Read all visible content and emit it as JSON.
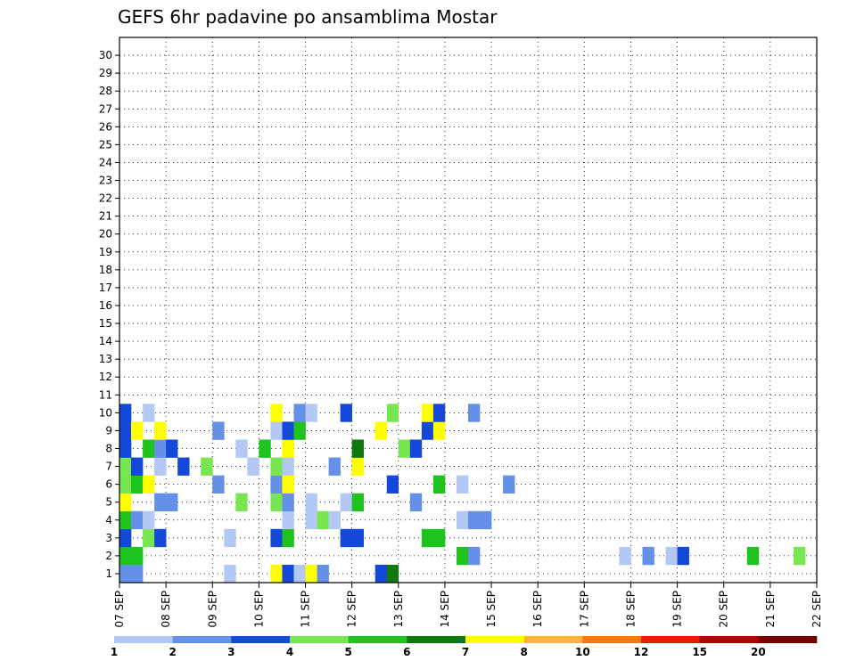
{
  "chart_data": {
    "type": "heatmap",
    "title": "GEFS 6hr padavine po ansamblima Mostar",
    "xlabel": "",
    "ylabel": "",
    "x_ticks": [
      "07 SEP",
      "08 SEP",
      "09 SEP",
      "10 SEP",
      "11 SEP",
      "12 SEP",
      "13 SEP",
      "14 SEP",
      "15 SEP",
      "16 SEP",
      "17 SEP",
      "18 SEP",
      "19 SEP",
      "20 SEP",
      "21 SEP",
      "22 SEP"
    ],
    "x_step_hours": 6,
    "y_ticks": [
      1,
      2,
      3,
      4,
      5,
      6,
      7,
      8,
      9,
      10,
      11,
      12,
      13,
      14,
      15,
      16,
      17,
      18,
      19,
      20,
      21,
      22,
      23,
      24,
      25,
      26,
      27,
      28,
      29,
      30
    ],
    "grid": true,
    "colorbar": {
      "labels": [
        "1",
        "2",
        "3",
        "4",
        "5",
        "6",
        "7",
        "8",
        "10",
        "12",
        "15",
        "20"
      ],
      "colors": [
        "#b4c8f5",
        "#6490e8",
        "#1448d8",
        "#78e650",
        "#1ec31e",
        "#0f780f",
        "#ffff00",
        "#ffb432",
        "#ff7800",
        "#e61e00",
        "#b40000",
        "#780000"
      ]
    },
    "cells": [
      [
        1,
        1,
        1
      ],
      [
        2,
        1,
        1
      ],
      [
        10,
        1,
        0
      ],
      [
        14,
        1,
        6
      ],
      [
        15,
        1,
        2
      ],
      [
        16,
        1,
        0
      ],
      [
        17,
        1,
        6
      ],
      [
        18,
        1,
        1
      ],
      [
        23,
        1,
        2
      ],
      [
        24,
        1,
        5
      ],
      [
        1,
        2,
        4
      ],
      [
        2,
        2,
        4
      ],
      [
        30,
        2,
        4
      ],
      [
        31,
        2,
        1
      ],
      [
        44,
        2,
        0
      ],
      [
        46,
        2,
        1
      ],
      [
        48,
        2,
        0
      ],
      [
        49,
        2,
        2
      ],
      [
        55,
        2,
        4
      ],
      [
        59,
        2,
        3
      ],
      [
        1,
        3,
        2
      ],
      [
        3,
        3,
        3
      ],
      [
        4,
        3,
        2
      ],
      [
        10,
        3,
        0
      ],
      [
        14,
        3,
        2
      ],
      [
        15,
        3,
        4
      ],
      [
        20,
        3,
        2
      ],
      [
        21,
        3,
        2
      ],
      [
        27,
        3,
        4
      ],
      [
        28,
        3,
        4
      ],
      [
        1,
        4,
        4
      ],
      [
        2,
        4,
        1
      ],
      [
        3,
        4,
        0
      ],
      [
        15,
        4,
        0
      ],
      [
        17,
        4,
        0
      ],
      [
        18,
        4,
        3
      ],
      [
        19,
        4,
        0
      ],
      [
        30,
        4,
        0
      ],
      [
        31,
        4,
        1
      ],
      [
        32,
        4,
        1
      ],
      [
        1,
        5,
        6
      ],
      [
        4,
        5,
        1
      ],
      [
        5,
        5,
        1
      ],
      [
        11,
        5,
        3
      ],
      [
        14,
        5,
        3
      ],
      [
        15,
        5,
        1
      ],
      [
        17,
        5,
        0
      ],
      [
        20,
        5,
        0
      ],
      [
        21,
        5,
        4
      ],
      [
        26,
        5,
        1
      ],
      [
        1,
        6,
        3
      ],
      [
        2,
        6,
        4
      ],
      [
        3,
        6,
        6
      ],
      [
        9,
        6,
        1
      ],
      [
        14,
        6,
        1
      ],
      [
        15,
        6,
        6
      ],
      [
        24,
        6,
        2
      ],
      [
        28,
        6,
        4
      ],
      [
        30,
        6,
        0
      ],
      [
        34,
        6,
        1
      ],
      [
        1,
        7,
        3
      ],
      [
        2,
        7,
        2
      ],
      [
        4,
        7,
        0
      ],
      [
        6,
        7,
        2
      ],
      [
        8,
        7,
        3
      ],
      [
        12,
        7,
        0
      ],
      [
        14,
        7,
        3
      ],
      [
        15,
        7,
        0
      ],
      [
        19,
        7,
        1
      ],
      [
        21,
        7,
        6
      ],
      [
        1,
        8,
        2
      ],
      [
        3,
        8,
        4
      ],
      [
        4,
        8,
        1
      ],
      [
        5,
        8,
        2
      ],
      [
        11,
        8,
        0
      ],
      [
        13,
        8,
        4
      ],
      [
        15,
        8,
        6
      ],
      [
        21,
        8,
        5
      ],
      [
        25,
        8,
        3
      ],
      [
        26,
        8,
        2
      ],
      [
        1,
        9,
        2
      ],
      [
        2,
        9,
        6
      ],
      [
        4,
        9,
        6
      ],
      [
        9,
        9,
        1
      ],
      [
        14,
        9,
        0
      ],
      [
        15,
        9,
        2
      ],
      [
        16,
        9,
        4
      ],
      [
        23,
        9,
        6
      ],
      [
        27,
        9,
        2
      ],
      [
        28,
        9,
        6
      ],
      [
        1,
        10,
        2
      ],
      [
        3,
        10,
        0
      ],
      [
        14,
        10,
        6
      ],
      [
        16,
        10,
        1
      ],
      [
        17,
        10,
        0
      ],
      [
        20,
        10,
        2
      ],
      [
        24,
        10,
        3
      ],
      [
        27,
        10,
        6
      ],
      [
        28,
        10,
        2
      ],
      [
        31,
        10,
        1
      ]
    ]
  }
}
